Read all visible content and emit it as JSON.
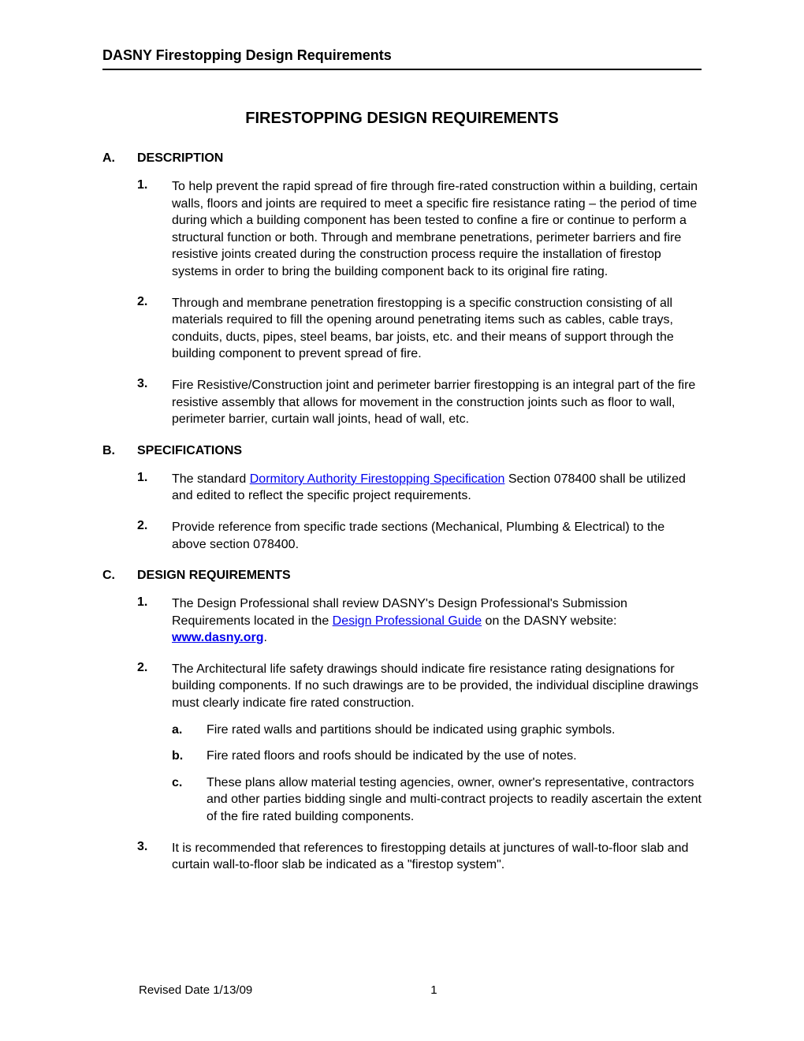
{
  "header": {
    "title": "DASNY Firestopping Design Requirements"
  },
  "title": "FIRESTOPPING DESIGN REQUIREMENTS",
  "sections": [
    {
      "letter": "A.",
      "heading": "DESCRIPTION",
      "items": [
        {
          "num": "1.",
          "text": "To help prevent the rapid spread of fire through fire-rated construction within a building, certain walls, floors and joints are required to meet a specific fire resistance rating – the period of time during which a building component has been tested to confine a fire or continue to perform a structural function or both. Through and membrane penetrations, perimeter barriers and fire resistive joints created during the construction process require the installation of firestop systems in order to bring the building component back to its original fire rating."
        },
        {
          "num": "2.",
          "text": "Through and membrane penetration firestopping is a specific construction consisting of all materials required to fill the opening around penetrating items such as cables, cable trays, conduits, ducts, pipes, steel beams, bar joists, etc. and their means of support through the building component to prevent spread of fire."
        },
        {
          "num": "3.",
          "text": "Fire Resistive/Construction joint and perimeter barrier firestopping is an integral part of the fire resistive assembly that allows for movement in the construction joints such as floor to wall, perimeter barrier, curtain wall joints, head of wall, etc."
        }
      ]
    },
    {
      "letter": "B.",
      "heading": "SPECIFICATIONS",
      "items": [
        {
          "num": "1.",
          "pre": "The standard ",
          "link": "Dormitory Authority Firestopping Specification",
          "post": " Section 078400 shall be utilized and edited to reflect the specific project requirements."
        },
        {
          "num": "2.",
          "text": "Provide reference from specific trade sections (Mechanical, Plumbing & Electrical) to the above section 078400."
        }
      ]
    },
    {
      "letter": "C.",
      "heading": "DESIGN REQUIREMENTS",
      "items": [
        {
          "num": "1.",
          "pre": "The Design Professional shall review DASNY's Design Professional's Submission Requirements located in the ",
          "link": "Design Professional Guide",
          "mid": " on the DASNY website: ",
          "link2": "www.dasny.org",
          "post": "."
        },
        {
          "num": "2.",
          "text": "The Architectural life safety drawings should indicate fire resistance rating designations for building components.  If no such drawings are to be provided, the individual discipline drawings must clearly indicate fire rated construction.",
          "subs": [
            {
              "letter": "a.",
              "text": "Fire rated walls and partitions should be indicated using graphic symbols."
            },
            {
              "letter": "b.",
              "text": "Fire rated floors and roofs should be indicated by the use of notes."
            },
            {
              "letter": "c.",
              "text": "These plans allow material testing agencies, owner, owner's representative, contractors and other parties bidding single and multi-contract projects to readily ascertain the extent of the fire rated building components."
            }
          ]
        },
        {
          "num": "3.",
          "text": "It is recommended that references to firestopping details at junctures of wall-to-floor slab and curtain wall-to-floor slab be indicated as a \"firestop system\"."
        }
      ]
    }
  ],
  "footer": {
    "revised": "Revised Date 1/13/09",
    "page": "1"
  },
  "colors": {
    "text": "#000000",
    "link": "#0000ee",
    "background": "#ffffff",
    "rule": "#000000"
  },
  "typography": {
    "body_fontsize": 16,
    "title_fontsize": 20,
    "header_fontsize": 18,
    "footer_fontsize": 15,
    "font_family": "Arial"
  }
}
